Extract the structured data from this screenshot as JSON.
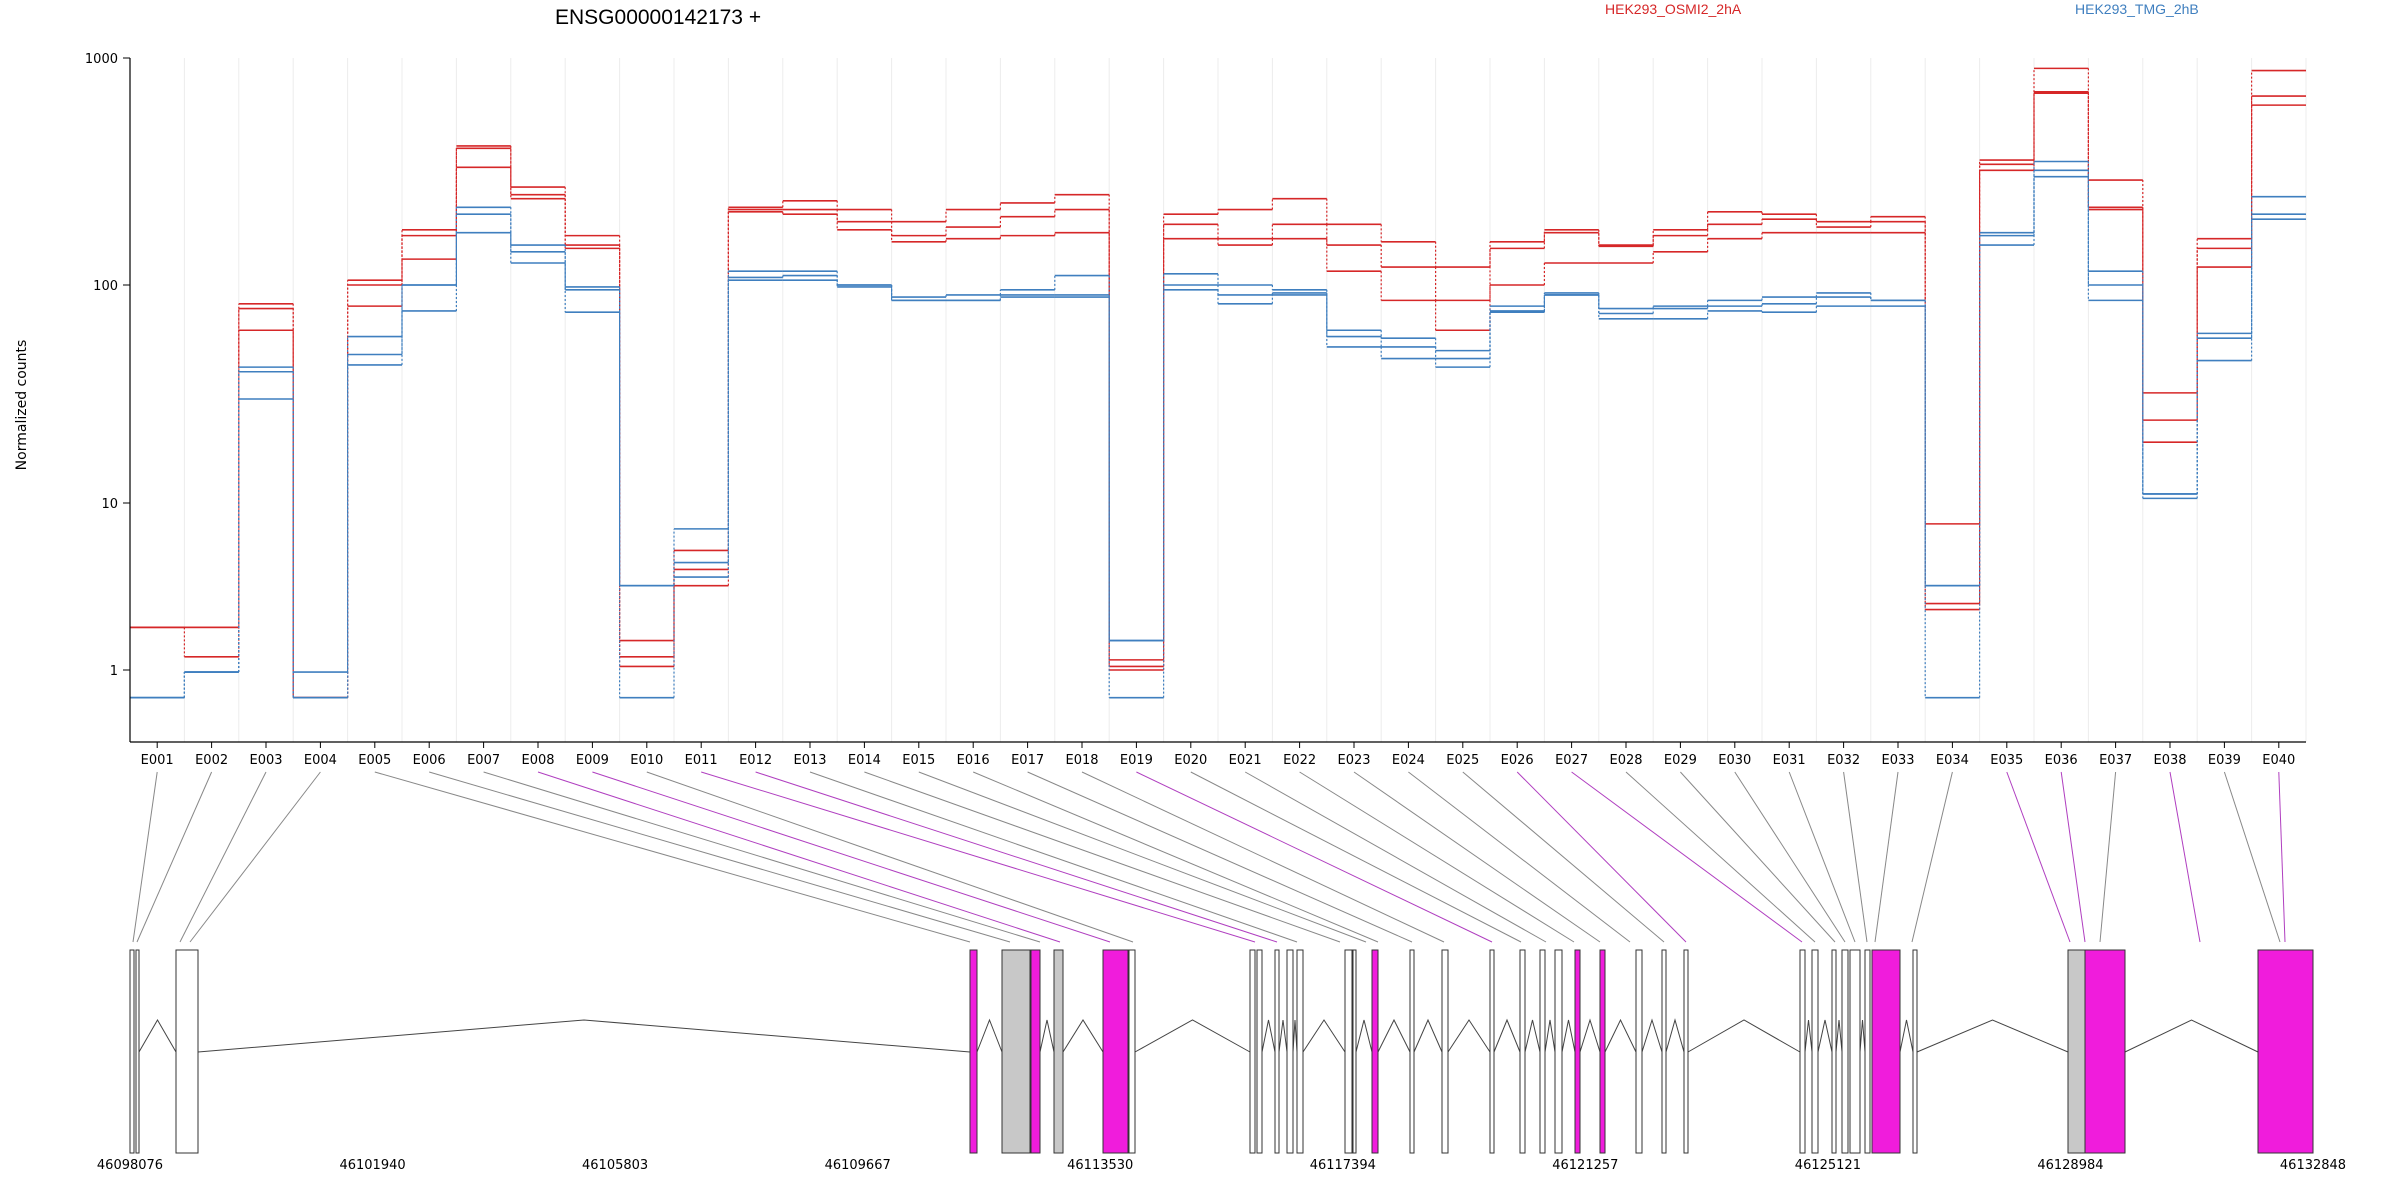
{
  "chart_data": {
    "type": "line",
    "title": "ENSG00000142173 +",
    "ylabel": "Normalized counts",
    "xlabel": "",
    "yscale": "log",
    "ylim": [
      0.5,
      1000
    ],
    "yticks": [
      "1",
      "10",
      "100",
      "1000"
    ],
    "categories": [
      "E001",
      "E002",
      "E003",
      "E004",
      "E005",
      "E006",
      "E007",
      "E008",
      "E009",
      "E010",
      "E011",
      "E012",
      "E013",
      "E014",
      "E015",
      "E016",
      "E017",
      "E018",
      "E019",
      "E020",
      "E021",
      "E022",
      "E023",
      "E024",
      "E025",
      "E026",
      "E027",
      "E028",
      "E029",
      "E030",
      "E031",
      "E032",
      "E033",
      "E034",
      "E035",
      "E036",
      "E037",
      "E038",
      "E039",
      "E040"
    ],
    "legend": [
      {
        "label": "HEK293_OSMI2_2hA",
        "color": "#d62728"
      },
      {
        "label": "HEK293_TMG_2hB",
        "color": "#3f7fbf"
      }
    ],
    "series": [
      {
        "color": "#d62728",
        "values": [
          1.8,
          1.2,
          82,
          0.5,
          105,
          175,
          410,
          270,
          165,
          1.5,
          5.2,
          220,
          235,
          215,
          190,
          215,
          230,
          250,
          1.05,
          205,
          215,
          240,
          185,
          155,
          120,
          155,
          175,
          150,
          175,
          210,
          205,
          190,
          200,
          7.5,
          355,
          900,
          290,
          32,
          160,
          880
        ]
      },
      {
        "color": "#d62728",
        "values": [
          1.8,
          1.8,
          78,
          0.5,
          100,
          165,
          400,
          250,
          150,
          1.2,
          4.0,
          215,
          215,
          190,
          165,
          180,
          200,
          215,
          1.15,
          185,
          160,
          185,
          150,
          120,
          85,
          145,
          170,
          148,
          165,
          185,
          195,
          180,
          190,
          2.5,
          340,
          710,
          220,
          24,
          145,
          680
        ]
      },
      {
        "color": "#d62728",
        "values": [
          1.8,
          1.8,
          62,
          0.5,
          80,
          130,
          330,
          240,
          145,
          1.05,
          3.2,
          210,
          205,
          175,
          155,
          160,
          165,
          170,
          1.0,
          160,
          150,
          160,
          115,
          85,
          62,
          100,
          125,
          125,
          140,
          160,
          170,
          170,
          170,
          2.3,
          320,
          700,
          215,
          19,
          120,
          620
        ]
      },
      {
        "color": "#3f7fbf",
        "values": [
          0.5,
          0.95,
          42,
          0.95,
          58,
          100,
          220,
          150,
          98,
          3.2,
          7.0,
          115,
          115,
          100,
          88,
          90,
          95,
          110,
          1.5,
          112,
          100,
          95,
          62,
          57,
          50,
          80,
          92,
          78,
          80,
          85,
          88,
          92,
          85,
          3.2,
          170,
          350,
          115,
          11,
          60,
          245
        ]
      },
      {
        "color": "#3f7fbf",
        "values": [
          0.5,
          0.95,
          40,
          0.5,
          48,
          100,
          205,
          140,
          95,
          3.2,
          4.4,
          108,
          110,
          100,
          85,
          85,
          90,
          90,
          1.5,
          100,
          90,
          92,
          58,
          52,
          46,
          76,
          90,
          74,
          78,
          80,
          82,
          88,
          85,
          3.2,
          165,
          320,
          100,
          11,
          57,
          205
        ]
      },
      {
        "color": "#3f7fbf",
        "values": [
          0.5,
          0.95,
          30,
          0.5,
          43,
          76,
          170,
          125,
          75,
          0.5,
          3.6,
          105,
          105,
          98,
          85,
          85,
          88,
          88,
          0.5,
          95,
          82,
          90,
          52,
          46,
          42,
          75,
          90,
          70,
          70,
          76,
          75,
          80,
          80,
          0.5,
          150,
          300,
          85,
          10.5,
          45,
          195
        ]
      }
    ],
    "gene_axis": {
      "ticks": [
        "46098076",
        "46101940",
        "46105803",
        "46109667",
        "46113530",
        "46117394",
        "46121257",
        "46125121",
        "46128984",
        "46132848"
      ],
      "highlighted_exons": [
        "E008",
        "E009",
        "E011",
        "E012",
        "E019",
        "E026",
        "E027",
        "E035",
        "E036",
        "E038",
        "E040"
      ]
    }
  }
}
